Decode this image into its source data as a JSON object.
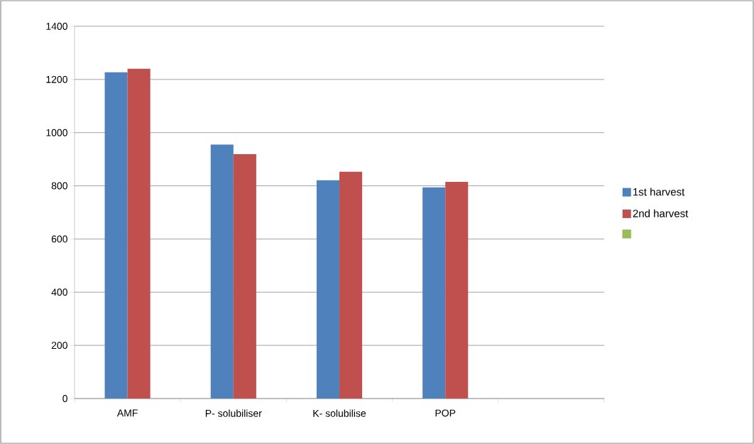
{
  "chart_data": {
    "type": "bar",
    "categories": [
      "AMF",
      "P- solubiliser",
      "K- solubilise",
      "POP",
      null
    ],
    "series": [
      {
        "name": "1st harvest",
        "color": "#4f81bd",
        "values": [
          1227,
          955,
          821,
          794,
          null
        ]
      },
      {
        "name": "2nd harvest",
        "color": "#c0504d",
        "values": [
          1240,
          919,
          853,
          815,
          null
        ]
      },
      {
        "color": "#9bbb59",
        "values": [
          null,
          null,
          null,
          null,
          null
        ]
      }
    ],
    "ylim": [
      0,
      1400
    ],
    "yticks": [
      0,
      200,
      400,
      600,
      800,
      1000,
      1200,
      1400
    ],
    "grid": "y",
    "legend": "right"
  }
}
